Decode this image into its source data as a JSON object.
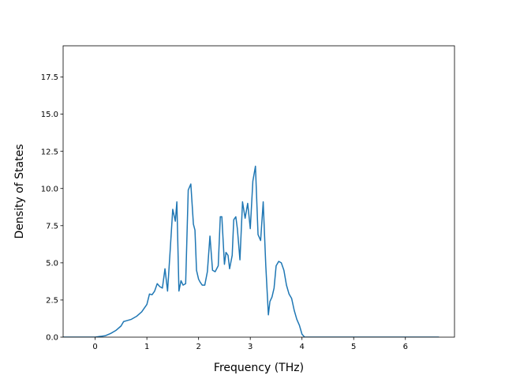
{
  "chart_data": {
    "type": "line",
    "title": "",
    "xlabel": "Frequency (THz)",
    "ylabel": "Density of States",
    "xlim": [
      -0.62,
      6.95
    ],
    "ylim": [
      0,
      19.6
    ],
    "xticks": [
      0,
      1,
      2,
      3,
      4,
      5,
      6
    ],
    "xtick_labels": [
      "0",
      "1",
      "2",
      "3",
      "4",
      "5",
      "6"
    ],
    "yticks": [
      0,
      2.5,
      5,
      7.5,
      10,
      12.5,
      15,
      17.5
    ],
    "ytick_labels": [
      "0.0",
      "2.5",
      "5.0",
      "7.5",
      "10.0",
      "12.5",
      "15.0",
      "17.5"
    ],
    "grid": false,
    "legend": "none",
    "colors": {
      "line": "#1f77b4",
      "axes": "#000000",
      "background": "#ffffff"
    },
    "series": [
      {
        "x": [
          -0.62,
          -0.3,
          0.0,
          0.2,
          0.3,
          0.4,
          0.5,
          0.55,
          0.6,
          0.7,
          0.8,
          0.9,
          1.0,
          1.05,
          1.1,
          1.15,
          1.2,
          1.25,
          1.3,
          1.35,
          1.4,
          1.45,
          1.5,
          1.55,
          1.58,
          1.62,
          1.66,
          1.7,
          1.75,
          1.8,
          1.85,
          1.9,
          1.93,
          1.96,
          2.0,
          2.03,
          2.07,
          2.12,
          2.17,
          2.22,
          2.27,
          2.32,
          2.38,
          2.42,
          2.45,
          2.5,
          2.53,
          2.57,
          2.6,
          2.65,
          2.68,
          2.72,
          2.75,
          2.8,
          2.85,
          2.9,
          2.95,
          3.0,
          3.05,
          3.1,
          3.15,
          3.2,
          3.25,
          3.3,
          3.35,
          3.38,
          3.42,
          3.46,
          3.5,
          3.55,
          3.6,
          3.65,
          3.7,
          3.75,
          3.8,
          3.85,
          3.9,
          3.95,
          4.0,
          4.05,
          4.1,
          4.15,
          4.2,
          4.3,
          4.45,
          4.55,
          4.8,
          5.1,
          5.15,
          5.2,
          5.25,
          5.3,
          5.35,
          5.4,
          5.45,
          5.5,
          5.55,
          5.6,
          5.65,
          5.7,
          5.75,
          5.8,
          5.85,
          5.9,
          5.95,
          6.0,
          6.1,
          6.3,
          6.65
        ],
        "y": [
          0.0,
          0.0,
          0.0,
          0.1,
          0.25,
          0.45,
          0.75,
          1.05,
          1.1,
          1.2,
          1.4,
          1.7,
          2.2,
          2.9,
          2.85,
          3.1,
          3.6,
          3.4,
          3.3,
          4.6,
          3.1,
          5.8,
          8.6,
          7.8,
          9.1,
          3.1,
          3.8,
          3.5,
          3.6,
          9.9,
          10.3,
          7.6,
          7.2,
          4.5,
          3.9,
          3.7,
          3.5,
          3.5,
          4.4,
          6.8,
          4.5,
          4.4,
          4.8,
          8.1,
          8.1,
          4.9,
          5.7,
          5.5,
          4.6,
          5.5,
          7.9,
          8.1,
          7.3,
          5.2,
          9.1,
          8.0,
          9.0,
          7.3,
          10.5,
          11.5,
          6.9,
          6.5,
          9.1,
          4.8,
          1.5,
          2.4,
          2.7,
          3.3,
          4.8,
          5.1,
          5.0,
          4.5,
          3.5,
          2.9,
          2.6,
          1.8,
          1.2,
          0.8,
          0.2,
          0.0,
          0.0,
          0.0,
          0.0,
          0.0,
          0.0,
          0.0,
          0.0,
          0.0,
          0.0,
          0.0,
          0.0,
          0.0,
          0.0,
          0.0,
          0.0,
          0.0,
          0.0,
          0.0,
          0.0,
          0.0,
          0.0,
          0.0,
          0.0,
          0.0,
          0.0,
          0.0,
          0.0,
          0.0,
          0.0
        ]
      }
    ]
  }
}
